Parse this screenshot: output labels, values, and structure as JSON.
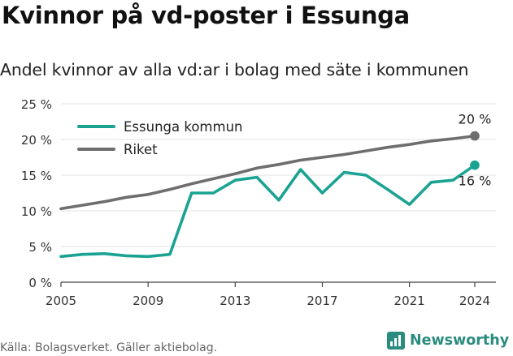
{
  "header": {
    "title": "Kvinnor på vd-poster i Essunga",
    "subtitle": "Andel kvinnor av alla vd:ar i bolag med säte i kommunen"
  },
  "footer": {
    "source": "Källa: Bolagsverket. Gäller aktiebolag.",
    "brand": "Newsworthy",
    "brand_color": "#2a8c7e"
  },
  "chart_data": {
    "type": "line",
    "title": "Kvinnor på vd-poster i Essunga",
    "subtitle": "Andel kvinnor av alla vd:ar i bolag med säte i kommunen",
    "x": [
      2005,
      2006,
      2007,
      2008,
      2009,
      2010,
      2011,
      2012,
      2013,
      2014,
      2015,
      2016,
      2017,
      2018,
      2019,
      2020,
      2021,
      2022,
      2023,
      2024
    ],
    "x_ticks": [
      "2005",
      "2009",
      "2013",
      "2017",
      "2021",
      "2024"
    ],
    "y_ticks": [
      "0 %",
      "5 %",
      "10 %",
      "15 %",
      "20 %",
      "25 %"
    ],
    "ylim": [
      0,
      25
    ],
    "grid": "horizontal",
    "legend_position": "top-left",
    "series": [
      {
        "name": "Essunga kommun",
        "color": "#1aa392",
        "values": [
          3.6,
          3.9,
          4.0,
          3.7,
          3.6,
          3.9,
          12.5,
          12.5,
          14.3,
          14.7,
          11.5,
          15.8,
          12.5,
          15.4,
          15.0,
          13.0,
          10.9,
          14.0,
          14.3,
          16.4
        ],
        "end_label": "16 %"
      },
      {
        "name": "Riket",
        "color": "#6e6e6e",
        "values": [
          10.3,
          10.8,
          11.3,
          11.9,
          12.3,
          13.0,
          13.8,
          14.5,
          15.2,
          16.0,
          16.5,
          17.1,
          17.5,
          17.9,
          18.4,
          18.9,
          19.3,
          19.8,
          20.1,
          20.5
        ],
        "end_label": "20 %"
      }
    ]
  }
}
